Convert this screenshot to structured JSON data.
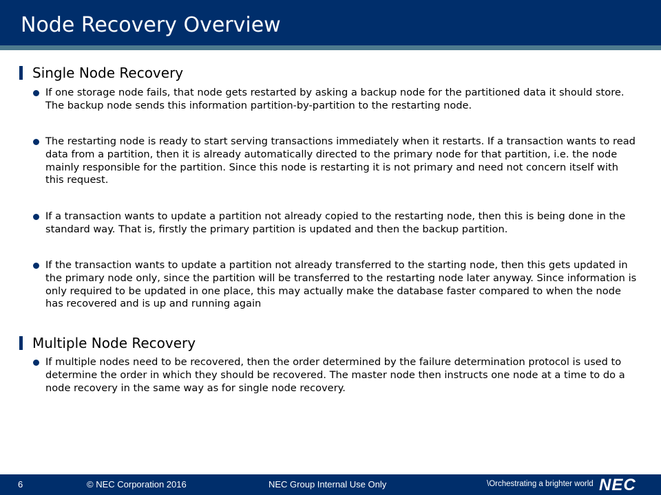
{
  "header": {
    "title": "Node Recovery Overview"
  },
  "sections": [
    {
      "heading": "Single Node Recovery",
      "bullets": [
        "If one storage node fails, that node gets restarted by asking a backup node for the partitioned data it should store. The backup node sends this information partition-by-partition to the restarting node.",
        "The restarting node is ready to start serving transactions immediately when it restarts. If a transaction wants to read data from a partition, then it is already automatically directed to the primary node for that partition, i.e. the node mainly responsible for the partition. Since this node is restarting it is not primary and need not concern itself with this request.",
        "If a transaction wants to update a partition not already copied to the restarting node, then this is being done in the standard way. That is, firstly the primary partition is updated and then the backup partition.",
        "If the transaction wants to update a partition not already transferred to the starting node, then this gets updated in the primary node only, since the partition will be transferred to the restarting node later anyway. Since information is only required to be updated in one place, this may actually make the database faster compared to when the node has recovered and is up and running again"
      ]
    },
    {
      "heading": "Multiple Node Recovery",
      "bullets": [
        "If multiple nodes need to be recovered, then the order determined by the failure determination protocol is used to determine the order in which they should be recovered. The master node then instructs one node at a time to do a node recovery in the same way as for single node recovery."
      ]
    }
  ],
  "footer": {
    "page_number": "6",
    "copyright": "© NEC Corporation 2016",
    "classification": "NEC Group Internal Use Only",
    "tagline": "\\Orchestrating a brighter world",
    "logo_text": "NEC"
  },
  "colors": {
    "brand_navy": "#002e6b",
    "rule_teal": "#4d7a8e"
  }
}
